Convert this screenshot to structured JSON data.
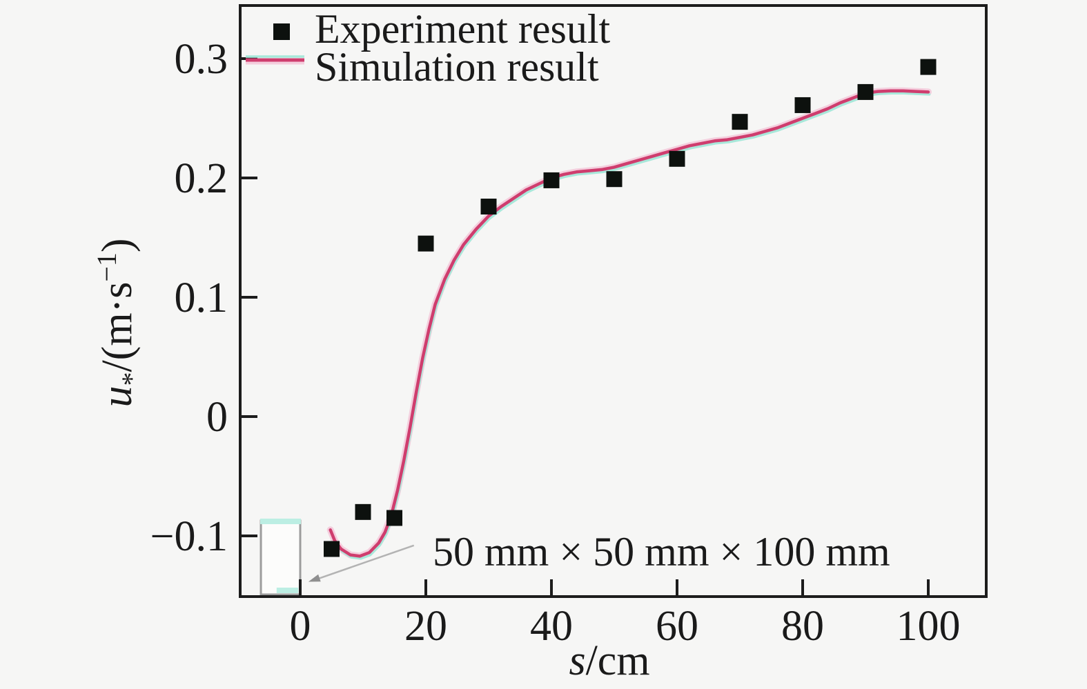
{
  "colors": {
    "background": "#f6f6f5",
    "frame": "#1c1c1c",
    "text": "#1a1a1a",
    "experiment": "#0d110e",
    "simulation": "#cf3d6e",
    "simulation_halo": "rgba(242,166,198,0.5)",
    "simulation_under": "#a8e8da",
    "box_stroke": "#9c9c9c",
    "box_fill": "#fcfcfb",
    "box_accent": "#bceee3",
    "arrow": "#b3b3b3"
  },
  "chart_data": {
    "type": "line",
    "xlabel": "s/cm",
    "ylabel": "u*/(m·s−1)",
    "xlabel_rich": [
      {
        "t": "s",
        "italic": true
      },
      {
        "t": "/cm"
      }
    ],
    "ylabel_rich": [
      {
        "t": "u",
        "italic": true
      },
      {
        "t": "*",
        "sub": true
      },
      {
        "t": "/(m·s"
      },
      {
        "t": "−1",
        "sup": true
      },
      {
        "t": ")"
      }
    ],
    "xlim": [
      -9.56,
      109.23
    ],
    "ylim": [
      -0.1509,
      0.3445
    ],
    "grid": false,
    "legend_position": "upper-left-inside",
    "x_ticks": {
      "values": [
        0,
        20,
        40,
        60,
        80,
        100
      ],
      "labels": [
        "0",
        "20",
        "40",
        "60",
        "80",
        "100"
      ]
    },
    "y_ticks": {
      "values": [
        0.3,
        0.2,
        0.1,
        0,
        -0.1
      ],
      "labels": [
        "0.3",
        "0.2",
        "0.1",
        "0",
        "−0.1"
      ]
    },
    "series": [
      {
        "name": "Experiment result",
        "type": "scatter",
        "marker": "square",
        "x": [
          5,
          10,
          15,
          20,
          30,
          40,
          50,
          60,
          70,
          80,
          90,
          100
        ],
        "y": [
          -0.111,
          -0.08,
          -0.085,
          0.145,
          0.176,
          0.198,
          0.199,
          0.216,
          0.247,
          0.261,
          0.272,
          0.293
        ]
      },
      {
        "name": "Simulation result",
        "type": "line",
        "points": [
          [
            4.8,
            -0.095
          ],
          [
            5.5,
            -0.104
          ],
          [
            6.5,
            -0.111
          ],
          [
            8,
            -0.116
          ],
          [
            9.5,
            -0.117
          ],
          [
            11,
            -0.114
          ],
          [
            12.5,
            -0.106
          ],
          [
            13.5,
            -0.097
          ],
          [
            14.5,
            -0.083
          ],
          [
            15.5,
            -0.062
          ],
          [
            16.5,
            -0.037
          ],
          [
            17.5,
            -0.009
          ],
          [
            18.5,
            0.021
          ],
          [
            19.5,
            0.049
          ],
          [
            20.5,
            0.073
          ],
          [
            21.5,
            0.094
          ],
          [
            23,
            0.115
          ],
          [
            24.5,
            0.131
          ],
          [
            26,
            0.144
          ],
          [
            28,
            0.157
          ],
          [
            30,
            0.168
          ],
          [
            32,
            0.176
          ],
          [
            34,
            0.183
          ],
          [
            36,
            0.19
          ],
          [
            38,
            0.195
          ],
          [
            40,
            0.2
          ],
          [
            42,
            0.203
          ],
          [
            44,
            0.205
          ],
          [
            46,
            0.206
          ],
          [
            48,
            0.207
          ],
          [
            50,
            0.209
          ],
          [
            52,
            0.212
          ],
          [
            54,
            0.215
          ],
          [
            56,
            0.218
          ],
          [
            58,
            0.221
          ],
          [
            60,
            0.224
          ],
          [
            62,
            0.227
          ],
          [
            64,
            0.229
          ],
          [
            66,
            0.231
          ],
          [
            68,
            0.232
          ],
          [
            70,
            0.234
          ],
          [
            72,
            0.236
          ],
          [
            74,
            0.239
          ],
          [
            76,
            0.242
          ],
          [
            78,
            0.246
          ],
          [
            80,
            0.25
          ],
          [
            82,
            0.254
          ],
          [
            84,
            0.258
          ],
          [
            86,
            0.263
          ],
          [
            88,
            0.267
          ],
          [
            90,
            0.271
          ],
          [
            92,
            0.2725
          ],
          [
            94,
            0.273
          ],
          [
            96,
            0.273
          ],
          [
            98,
            0.2725
          ],
          [
            100,
            0.272
          ]
        ]
      }
    ],
    "annotation": {
      "text": "50 mm × 50 mm × 100 mm",
      "arrow_tail": [
        18.1,
        -0.108
      ],
      "arrow_tip": [
        1.3,
        -0.1385
      ]
    },
    "obstacle_box": {
      "s0": -6.26,
      "s1": 0.0,
      "u_top": -0.0873,
      "u_bottom": -0.149,
      "label_meaning": "50 mm × 50 mm × 100 mm block"
    }
  }
}
